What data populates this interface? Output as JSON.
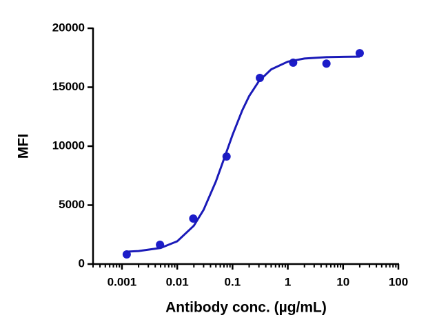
{
  "chart_data": {
    "type": "scatter",
    "x_label": "Antibody conc. (µg/mL)",
    "y_label": "MFI",
    "xscale": "log",
    "xlim": [
      0.0003,
      100
    ],
    "xticks": [
      0.001,
      0.01,
      0.1,
      1,
      10,
      100
    ],
    "xminor_ticks": [
      0.0003,
      0.0004,
      0.0005,
      0.0006,
      0.0007,
      0.0008,
      0.0009,
      0.002,
      0.003,
      0.004,
      0.005,
      0.006,
      0.007,
      0.008,
      0.009,
      0.02,
      0.03,
      0.04,
      0.05,
      0.06,
      0.07,
      0.08,
      0.09,
      0.2,
      0.3,
      0.4,
      0.5,
      0.6,
      0.7,
      0.8,
      0.9,
      2,
      3,
      4,
      5,
      6,
      7,
      8,
      9,
      20,
      30,
      40,
      50,
      60,
      70,
      80,
      90
    ],
    "ylim": [
      0,
      20000
    ],
    "yticks": [
      0,
      5000,
      10000,
      15000,
      20000
    ],
    "series": [
      {
        "type": "scatter",
        "color": "#1c1cc9",
        "x": [
          0.00122,
          0.00488,
          0.0195,
          0.078,
          0.3125,
          1.25,
          5,
          20
        ],
        "values": [
          820,
          1640,
          3860,
          9120,
          15790,
          17080,
          17000,
          17890
        ]
      },
      {
        "type": "line",
        "color": "#1a1ab8",
        "x": [
          0.00122,
          0.002,
          0.005,
          0.01,
          0.02,
          0.03,
          0.05,
          0.075,
          0.1,
          0.15,
          0.2,
          0.3,
          0.5,
          1,
          2,
          5,
          10,
          20
        ],
        "values": [
          1052,
          1103,
          1366,
          1933,
          3255,
          4601,
          7006,
          9300,
          10952,
          13038,
          14248,
          15516,
          16511,
          17170,
          17434,
          17554,
          17582,
          17593
        ]
      }
    ]
  }
}
